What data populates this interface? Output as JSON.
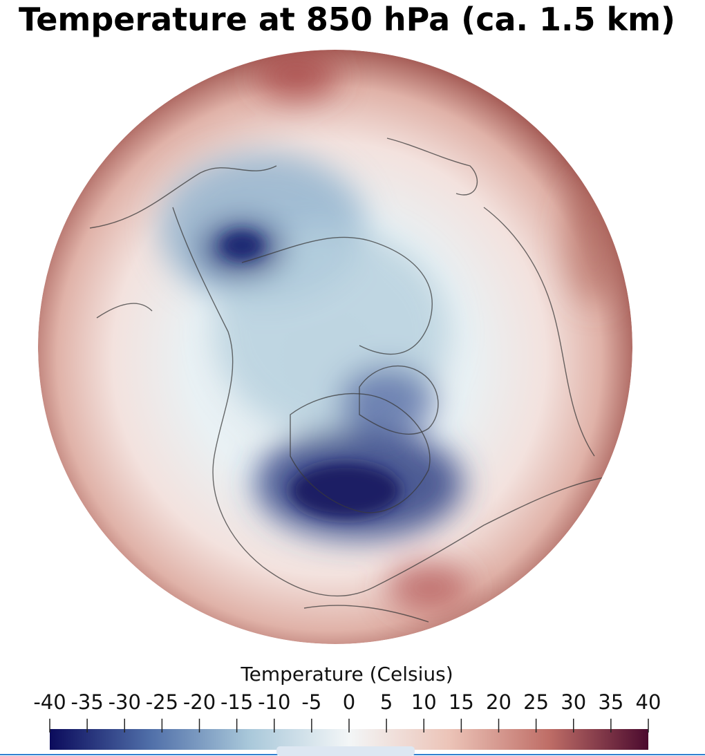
{
  "title": "Temperature at 850 hPa (ca. 1.5 km)",
  "colorbar": {
    "label": "Temperature (Celsius)",
    "lim": [
      -40,
      40
    ],
    "ticks": [
      -40,
      -35,
      -30,
      -25,
      -20,
      -15,
      -10,
      -5,
      0,
      5,
      10,
      15,
      20,
      25,
      30,
      35,
      40
    ],
    "colors": [
      "#0b0b5c",
      "#4f6ea8",
      "#a9c8da",
      "#f3f6f7",
      "#ecc4b8",
      "#bf6e67",
      "#4b0a2e"
    ]
  }
}
